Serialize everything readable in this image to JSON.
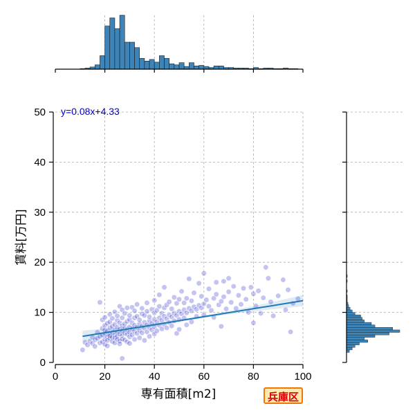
{
  "region_badge": "兵庫区",
  "chart_data": {
    "type": "scatter",
    "xlabel": "専有面積[m2]",
    "ylabel": "賃料[万円]",
    "xlim": [
      0,
      100
    ],
    "ylim": [
      0,
      50
    ],
    "x_ticks": [
      0,
      20,
      40,
      60,
      80,
      100
    ],
    "y_ticks": [
      0,
      10,
      20,
      30,
      40,
      50
    ],
    "grid": true,
    "regression": {
      "equation": "y=0.08x+4.33",
      "slope": 0.08,
      "intercept": 4.33,
      "x_range": [
        11,
        100
      ]
    },
    "colors": {
      "points": "#2b2bcc",
      "regression_line": "#1f77b4",
      "equation_text": "#0000cc",
      "histogram": "#3d85b8"
    },
    "marginal_x_histogram": {
      "bin_width": 2,
      "bins": [
        {
          "x": 10,
          "count": 1
        },
        {
          "x": 12,
          "count": 2
        },
        {
          "x": 14,
          "count": 4
        },
        {
          "x": 16,
          "count": 8
        },
        {
          "x": 18,
          "count": 25
        },
        {
          "x": 20,
          "count": 80
        },
        {
          "x": 22,
          "count": 95
        },
        {
          "x": 24,
          "count": 75
        },
        {
          "x": 26,
          "count": 100
        },
        {
          "x": 28,
          "count": 50
        },
        {
          "x": 30,
          "count": 50
        },
        {
          "x": 32,
          "count": 40
        },
        {
          "x": 34,
          "count": 20
        },
        {
          "x": 36,
          "count": 15
        },
        {
          "x": 38,
          "count": 18
        },
        {
          "x": 40,
          "count": 13
        },
        {
          "x": 42,
          "count": 25
        },
        {
          "x": 44,
          "count": 20
        },
        {
          "x": 46,
          "count": 10
        },
        {
          "x": 48,
          "count": 8
        },
        {
          "x": 50,
          "count": 12
        },
        {
          "x": 52,
          "count": 5
        },
        {
          "x": 54,
          "count": 12
        },
        {
          "x": 56,
          "count": 6
        },
        {
          "x": 58,
          "count": 7
        },
        {
          "x": 60,
          "count": 5
        },
        {
          "x": 62,
          "count": 3
        },
        {
          "x": 64,
          "count": 6
        },
        {
          "x": 66,
          "count": 6
        },
        {
          "x": 68,
          "count": 3
        },
        {
          "x": 70,
          "count": 3
        },
        {
          "x": 72,
          "count": 2
        },
        {
          "x": 74,
          "count": 2
        },
        {
          "x": 76,
          "count": 2
        },
        {
          "x": 78,
          "count": 1
        },
        {
          "x": 80,
          "count": 3
        },
        {
          "x": 82,
          "count": 1
        },
        {
          "x": 84,
          "count": 2
        },
        {
          "x": 86,
          "count": 2
        },
        {
          "x": 88,
          "count": 1
        },
        {
          "x": 90,
          "count": 1
        },
        {
          "x": 92,
          "count": 2
        },
        {
          "x": 94,
          "count": 1
        },
        {
          "x": 96,
          "count": 1
        }
      ]
    },
    "marginal_y_histogram": {
      "bin_width": 0.5,
      "bins": [
        {
          "y": 2.0,
          "count": 4
        },
        {
          "y": 2.5,
          "count": 8
        },
        {
          "y": 3.0,
          "count": 12
        },
        {
          "y": 3.5,
          "count": 18
        },
        {
          "y": 4.0,
          "count": 30
        },
        {
          "y": 4.5,
          "count": 25
        },
        {
          "y": 5.0,
          "count": 40
        },
        {
          "y": 5.5,
          "count": 60
        },
        {
          "y": 6.0,
          "count": 75
        },
        {
          "y": 6.5,
          "count": 65
        },
        {
          "y": 7.0,
          "count": 40
        },
        {
          "y": 7.5,
          "count": 35
        },
        {
          "y": 8.0,
          "count": 25
        },
        {
          "y": 8.5,
          "count": 22
        },
        {
          "y": 9.0,
          "count": 20
        },
        {
          "y": 9.5,
          "count": 12
        },
        {
          "y": 10.0,
          "count": 8
        },
        {
          "y": 10.5,
          "count": 5
        },
        {
          "y": 11.0,
          "count": 3
        },
        {
          "y": 11.5,
          "count": 2
        },
        {
          "y": 12.0,
          "count": 1
        },
        {
          "y": 12.5,
          "count": 1
        },
        {
          "y": 13.0,
          "count": 1
        },
        {
          "y": 14.0,
          "count": 1
        },
        {
          "y": 16.0,
          "count": 1
        },
        {
          "y": 17.0,
          "count": 1
        }
      ]
    },
    "points": [
      [
        11,
        2.5
      ],
      [
        12,
        4.0
      ],
      [
        13,
        3.5
      ],
      [
        14,
        4.2
      ],
      [
        15,
        3.8
      ],
      [
        15,
        5.0
      ],
      [
        16,
        4.5
      ],
      [
        16,
        3.2
      ],
      [
        17,
        4.8
      ],
      [
        17,
        6.0
      ],
      [
        18,
        5.2
      ],
      [
        18,
        3.9
      ],
      [
        18,
        12.0
      ],
      [
        19,
        5.5
      ],
      [
        19,
        4.1
      ],
      [
        19,
        6.8
      ],
      [
        19,
        8.5
      ],
      [
        20,
        4.6
      ],
      [
        20,
        5.8
      ],
      [
        20,
        6.5
      ],
      [
        20,
        3.6
      ],
      [
        20,
        7.4
      ],
      [
        20,
        9.0
      ],
      [
        21,
        5.1
      ],
      [
        21,
        6.2
      ],
      [
        21,
        4.4
      ],
      [
        21,
        7.8
      ],
      [
        21,
        3.3
      ],
      [
        22,
        5.6
      ],
      [
        22,
        6.9
      ],
      [
        22,
        4.8
      ],
      [
        22,
        8.1
      ],
      [
        22,
        5.3
      ],
      [
        22,
        9.6
      ],
      [
        23,
        6.0
      ],
      [
        23,
        5.0
      ],
      [
        23,
        7.2
      ],
      [
        23,
        4.2
      ],
      [
        23,
        8.8
      ],
      [
        24,
        6.4
      ],
      [
        24,
        5.5
      ],
      [
        24,
        7.6
      ],
      [
        24,
        4.9
      ],
      [
        24,
        10.1
      ],
      [
        24,
        3.9
      ],
      [
        25,
        6.1
      ],
      [
        25,
        5.2
      ],
      [
        25,
        7.0
      ],
      [
        25,
        8.4
      ],
      [
        25,
        4.6
      ],
      [
        25,
        9.3
      ],
      [
        26,
        6.6
      ],
      [
        26,
        5.7
      ],
      [
        26,
        7.9
      ],
      [
        26,
        4.3
      ],
      [
        26,
        11.2
      ],
      [
        26,
        3.7
      ],
      [
        27,
        6.3
      ],
      [
        27,
        5.4
      ],
      [
        27,
        7.3
      ],
      [
        27,
        8.9
      ],
      [
        27,
        4.7
      ],
      [
        27,
        10.5
      ],
      [
        27,
        0.8
      ],
      [
        28,
        6.8
      ],
      [
        28,
        5.9
      ],
      [
        28,
        7.7
      ],
      [
        28,
        4.5
      ],
      [
        28,
        9.8
      ],
      [
        29,
        6.5
      ],
      [
        29,
        5.6
      ],
      [
        29,
        8.2
      ],
      [
        29,
        4.1
      ],
      [
        29,
        10.9
      ],
      [
        30,
        7.1
      ],
      [
        30,
        6.0
      ],
      [
        30,
        8.6
      ],
      [
        30,
        5.1
      ],
      [
        30,
        9.4
      ],
      [
        30,
        3.8
      ],
      [
        31,
        6.7
      ],
      [
        31,
        7.9
      ],
      [
        31,
        5.5
      ],
      [
        31,
        11.0
      ],
      [
        32,
        7.4
      ],
      [
        32,
        6.2
      ],
      [
        32,
        8.9
      ],
      [
        32,
        4.6
      ],
      [
        32,
        10.3
      ],
      [
        33,
        7.0
      ],
      [
        33,
        5.8
      ],
      [
        33,
        9.2
      ],
      [
        33,
        11.6
      ],
      [
        34,
        7.7
      ],
      [
        34,
        6.4
      ],
      [
        34,
        8.5
      ],
      [
        34,
        4.9
      ],
      [
        35,
        7.2
      ],
      [
        35,
        9.7
      ],
      [
        35,
        5.9
      ],
      [
        35,
        10.8
      ],
      [
        36,
        8.0
      ],
      [
        36,
        6.8
      ],
      [
        36,
        9.4
      ],
      [
        36,
        4.4
      ],
      [
        37,
        7.5
      ],
      [
        37,
        10.2
      ],
      [
        37,
        6.1
      ],
      [
        37,
        11.9
      ],
      [
        38,
        8.3
      ],
      [
        38,
        6.9
      ],
      [
        38,
        9.1
      ],
      [
        38,
        5.2
      ],
      [
        39,
        7.8
      ],
      [
        39,
        10.6
      ],
      [
        39,
        6.5
      ],
      [
        40,
        8.6
      ],
      [
        40,
        7.1
      ],
      [
        40,
        9.9
      ],
      [
        40,
        5.7
      ],
      [
        40,
        12.4
      ],
      [
        41,
        8.1
      ],
      [
        41,
        10.4
      ],
      [
        41,
        6.3
      ],
      [
        42,
        8.9
      ],
      [
        42,
        7.4
      ],
      [
        42,
        11.2
      ],
      [
        42,
        13.5
      ],
      [
        43,
        8.4
      ],
      [
        43,
        9.8
      ],
      [
        43,
        6.7
      ],
      [
        44,
        9.2
      ],
      [
        44,
        7.6
      ],
      [
        44,
        10.9
      ],
      [
        44,
        15.0
      ],
      [
        45,
        8.7
      ],
      [
        45,
        11.5
      ],
      [
        45,
        6.9
      ],
      [
        46,
        9.5
      ],
      [
        46,
        8.0
      ],
      [
        46,
        12.1
      ],
      [
        47,
        9.1
      ],
      [
        47,
        7.3
      ],
      [
        47,
        10.7
      ],
      [
        48,
        9.8
      ],
      [
        48,
        8.3
      ],
      [
        48,
        13.0
      ],
      [
        49,
        9.4
      ],
      [
        49,
        11.8
      ],
      [
        49,
        5.8
      ],
      [
        50,
        10.2
      ],
      [
        50,
        8.6
      ],
      [
        50,
        12.6
      ],
      [
        50,
        6.6
      ],
      [
        51,
        9.7
      ],
      [
        51,
        14.2
      ],
      [
        52,
        10.5
      ],
      [
        52,
        8.9
      ],
      [
        52,
        11.9
      ],
      [
        53,
        9.9
      ],
      [
        53,
        12.8
      ],
      [
        53,
        7.5
      ],
      [
        54,
        10.8
      ],
      [
        54,
        16.7
      ],
      [
        55,
        10.3
      ],
      [
        55,
        12.3
      ],
      [
        55,
        8.1
      ],
      [
        56,
        11.1
      ],
      [
        56,
        13.9
      ],
      [
        57,
        10.6
      ],
      [
        57,
        9.2
      ],
      [
        58,
        11.4
      ],
      [
        58,
        15.8
      ],
      [
        59,
        10.9
      ],
      [
        59,
        13.2
      ],
      [
        60,
        11.7
      ],
      [
        60,
        17.8
      ],
      [
        60,
        9.5
      ],
      [
        61,
        12.5
      ],
      [
        62,
        11.2
      ],
      [
        62,
        14.7
      ],
      [
        63,
        10.4
      ],
      [
        64,
        12.8
      ],
      [
        64,
        9.0
      ],
      [
        65,
        13.6
      ],
      [
        65,
        16.0
      ],
      [
        66,
        11.5
      ],
      [
        67,
        7.2
      ],
      [
        67,
        12.2
      ],
      [
        68,
        13.1
      ],
      [
        68,
        16.2
      ],
      [
        69,
        10.7
      ],
      [
        70,
        14.1
      ],
      [
        70,
        16.8
      ],
      [
        71,
        12.0
      ],
      [
        72,
        15.2
      ],
      [
        73,
        10.8
      ],
      [
        74,
        13.4
      ],
      [
        75,
        11.6
      ],
      [
        76,
        14.8
      ],
      [
        77,
        12.6
      ],
      [
        78,
        10.0
      ],
      [
        79,
        15.0
      ],
      [
        80,
        13.7
      ],
      [
        80,
        7.9
      ],
      [
        81,
        11.3
      ],
      [
        82,
        14.3
      ],
      [
        83,
        9.8
      ],
      [
        84,
        12.9
      ],
      [
        85,
        19.0
      ],
      [
        86,
        16.8
      ],
      [
        87,
        12.1
      ],
      [
        88,
        9.3
      ],
      [
        90,
        13.3
      ],
      [
        92,
        16.5
      ],
      [
        93,
        10.5
      ],
      [
        94,
        14.5
      ],
      [
        95,
        6.1
      ],
      [
        96,
        11.8
      ],
      [
        98,
        12.7
      ]
    ]
  }
}
